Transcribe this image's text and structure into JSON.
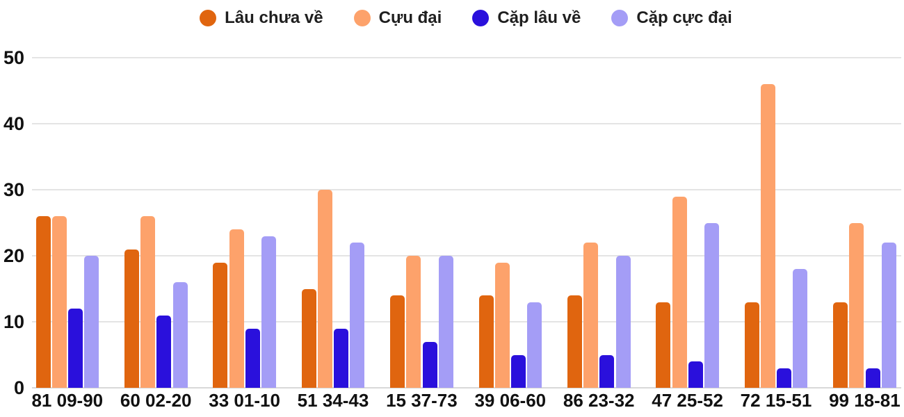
{
  "chart_data": {
    "type": "bar",
    "categories": [
      "81 09-90",
      "60 02-20",
      "33 01-10",
      "51 34-43",
      "15 37-73",
      "39 06-60",
      "86 23-32",
      "47 25-52",
      "72 15-51",
      "99 18-81"
    ],
    "series": [
      {
        "name": "Lâu chưa về",
        "color": "#e0650f",
        "values": [
          26,
          21,
          19,
          15,
          14,
          14,
          14,
          13,
          13,
          13
        ]
      },
      {
        "name": "Cựu đại",
        "color": "#fda26b",
        "values": [
          26,
          26,
          24,
          30,
          20,
          19,
          22,
          29,
          46,
          25
        ]
      },
      {
        "name": "Cặp lâu về",
        "color": "#2a10dc",
        "values": [
          12,
          11,
          9,
          9,
          7,
          5,
          5,
          4,
          3,
          3
        ]
      },
      {
        "name": "Cặp cực đại",
        "color": "#a49df6",
        "values": [
          20,
          16,
          23,
          22,
          20,
          13,
          20,
          25,
          18,
          22
        ]
      }
    ],
    "title": "",
    "xlabel": "",
    "ylabel": "",
    "ylim": [
      0,
      50
    ],
    "yticks": [
      0,
      10,
      20,
      30,
      40,
      50
    ],
    "grid": true,
    "legend_position": "top"
  },
  "colors": {
    "background": "#ffffff",
    "gridline": "#e4e4e4",
    "baseline": "#d8d8d8",
    "axis_text": "#111111",
    "legend_text": "#1f1f1f"
  }
}
